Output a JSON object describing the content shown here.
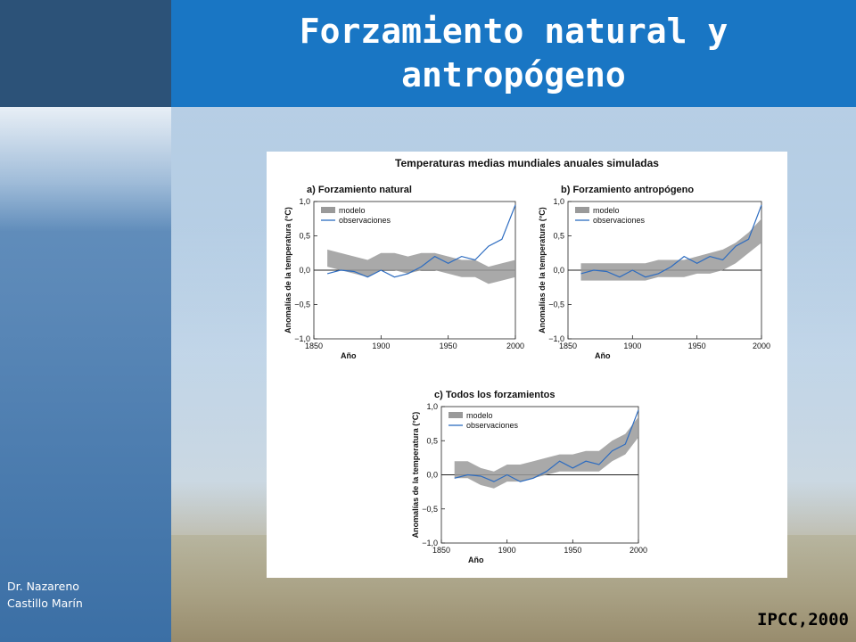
{
  "slide": {
    "title_line1": "Forzamiento natural y",
    "title_line2": "antropógeno",
    "author_line1": "Dr. Nazareno",
    "author_line2": "Castillo Marín",
    "credit": "IPCC,2000",
    "colors": {
      "title_bar": "#1976c4",
      "sidebar_top": "#2c5278",
      "model_band": "#9a9a9a",
      "observations": "#2d6cc0"
    }
  },
  "figure": {
    "title": "Temperaturas medias mundiales anuales simuladas"
  },
  "chart_data": [
    {
      "type": "line",
      "panel": "a",
      "title": "a) Forzamiento natural",
      "xlabel": "Año",
      "ylabel": "Anomalías de la temperatura (°C)",
      "xlim": [
        1850,
        2000
      ],
      "ylim": [
        -1.0,
        1.0
      ],
      "xticks": [
        "1850",
        "1900",
        "1950",
        "2000"
      ],
      "yticks": [
        "1,0",
        "0,5",
        "0,0",
        "−0,5",
        "−1,0"
      ],
      "legend": [
        "modelo",
        "observaciones"
      ],
      "x": [
        1860,
        1870,
        1880,
        1890,
        1900,
        1910,
        1920,
        1930,
        1940,
        1950,
        1960,
        1970,
        1980,
        1990,
        2000
      ],
      "series": [
        {
          "name": "modelo",
          "kind": "band",
          "low": [
            0.05,
            0.0,
            -0.05,
            -0.1,
            0.0,
            0.0,
            -0.05,
            0.0,
            0.0,
            -0.05,
            -0.1,
            -0.1,
            -0.2,
            -0.15,
            -0.1
          ],
          "high": [
            0.3,
            0.25,
            0.2,
            0.15,
            0.25,
            0.25,
            0.2,
            0.25,
            0.25,
            0.2,
            0.15,
            0.15,
            0.05,
            0.1,
            0.15
          ]
        },
        {
          "name": "observaciones",
          "kind": "line",
          "values": [
            -0.05,
            0.0,
            -0.02,
            -0.1,
            0.0,
            -0.1,
            -0.05,
            0.05,
            0.2,
            0.1,
            0.2,
            0.15,
            0.35,
            0.45,
            0.95
          ]
        }
      ]
    },
    {
      "type": "line",
      "panel": "b",
      "title": "b) Forzamiento antropógeno",
      "xlabel": "Año",
      "ylabel": "Anomalías de la temperatura (°C)",
      "xlim": [
        1850,
        2000
      ],
      "ylim": [
        -1.0,
        1.0
      ],
      "xticks": [
        "1850",
        "1900",
        "1950",
        "2000"
      ],
      "yticks": [
        "1,0",
        "0,5",
        "0,0",
        "−0,5",
        "−1,0"
      ],
      "legend": [
        "modelo",
        "observaciones"
      ],
      "x": [
        1860,
        1870,
        1880,
        1890,
        1900,
        1910,
        1920,
        1930,
        1940,
        1950,
        1960,
        1970,
        1980,
        1990,
        2000
      ],
      "series": [
        {
          "name": "modelo",
          "kind": "band",
          "low": [
            -0.15,
            -0.15,
            -0.15,
            -0.15,
            -0.15,
            -0.15,
            -0.1,
            -0.1,
            -0.1,
            -0.05,
            -0.05,
            0.0,
            0.1,
            0.25,
            0.4
          ],
          "high": [
            0.1,
            0.1,
            0.1,
            0.1,
            0.1,
            0.1,
            0.15,
            0.15,
            0.15,
            0.2,
            0.25,
            0.3,
            0.4,
            0.55,
            0.75
          ]
        },
        {
          "name": "observaciones",
          "kind": "line",
          "values": [
            -0.05,
            0.0,
            -0.02,
            -0.1,
            0.0,
            -0.1,
            -0.05,
            0.05,
            0.2,
            0.1,
            0.2,
            0.15,
            0.35,
            0.45,
            0.95
          ]
        }
      ]
    },
    {
      "type": "line",
      "panel": "c",
      "title": "c) Todos los forzamientos",
      "xlabel": "Año",
      "ylabel": "Anomalías de la temperatura (°C)",
      "xlim": [
        1850,
        2000
      ],
      "ylim": [
        -1.0,
        1.0
      ],
      "xticks": [
        "1850",
        "1900",
        "1950",
        "2000"
      ],
      "yticks": [
        "1,0",
        "0,5",
        "0,0",
        "−0,5",
        "−1,0"
      ],
      "legend": [
        "modelo",
        "observaciones"
      ],
      "x": [
        1860,
        1870,
        1880,
        1890,
        1900,
        1910,
        1920,
        1930,
        1940,
        1950,
        1960,
        1970,
        1980,
        1990,
        2000
      ],
      "series": [
        {
          "name": "modelo",
          "kind": "band",
          "low": [
            -0.05,
            -0.05,
            -0.15,
            -0.2,
            -0.1,
            -0.1,
            -0.05,
            0.0,
            0.05,
            0.05,
            0.05,
            0.05,
            0.2,
            0.3,
            0.55
          ],
          "high": [
            0.2,
            0.2,
            0.1,
            0.05,
            0.15,
            0.15,
            0.2,
            0.25,
            0.3,
            0.3,
            0.35,
            0.35,
            0.5,
            0.6,
            0.85
          ]
        },
        {
          "name": "observaciones",
          "kind": "line",
          "values": [
            -0.05,
            0.0,
            -0.02,
            -0.1,
            0.0,
            -0.1,
            -0.05,
            0.05,
            0.2,
            0.1,
            0.2,
            0.15,
            0.35,
            0.45,
            0.95
          ]
        }
      ]
    }
  ]
}
